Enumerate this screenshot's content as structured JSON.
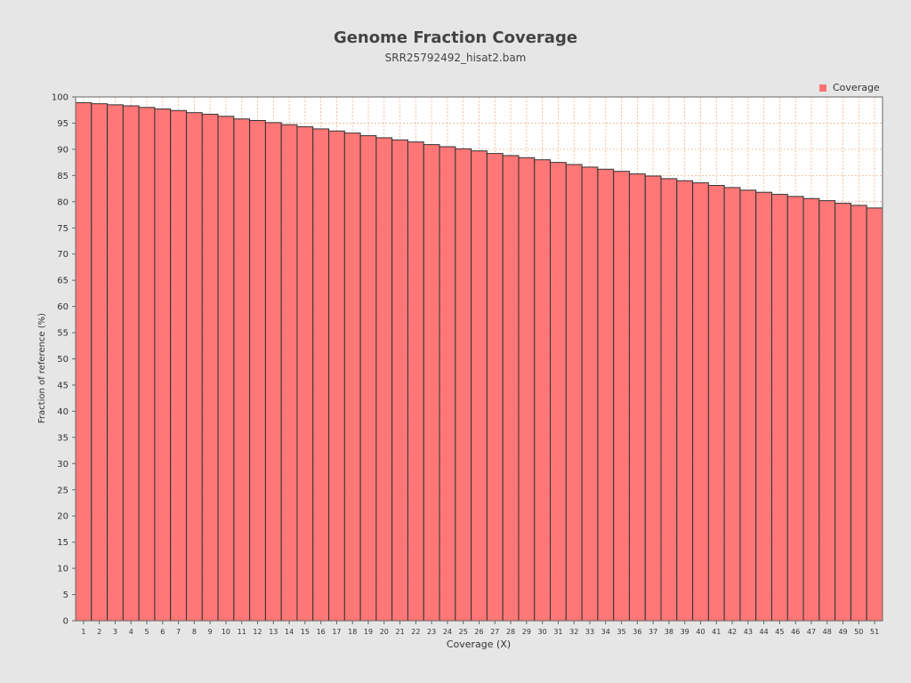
{
  "chart_data": {
    "type": "bar",
    "title": "Genome Fraction Coverage",
    "subtitle": "SRR25792492_hisat2.bam",
    "xlabel": "Coverage (X)",
    "ylabel": "Fraction of reference (%)",
    "ylim": [
      0,
      100
    ],
    "ytick_step": 5,
    "grid": true,
    "legend_position": "top-right",
    "series": [
      {
        "name": "Coverage",
        "color": "#ff7070",
        "values": [
          98.9,
          98.7,
          98.5,
          98.3,
          98.0,
          97.7,
          97.4,
          97.0,
          96.7,
          96.3,
          95.8,
          95.5,
          95.1,
          94.7,
          94.3,
          93.9,
          93.5,
          93.1,
          92.6,
          92.2,
          91.8,
          91.4,
          90.9,
          90.5,
          90.1,
          89.7,
          89.2,
          88.8,
          88.4,
          88.0,
          87.5,
          87.1,
          86.6,
          86.2,
          85.8,
          85.3,
          84.9,
          84.4,
          84.0,
          83.6,
          83.1,
          82.7,
          82.2,
          81.8,
          81.4,
          81.0,
          80.6,
          80.2,
          79.7,
          79.3,
          78.8
        ]
      }
    ],
    "categories": [
      "1",
      "2",
      "3",
      "4",
      "5",
      "6",
      "7",
      "8",
      "9",
      "10",
      "11",
      "12",
      "13",
      "14",
      "15",
      "16",
      "17",
      "18",
      "19",
      "20",
      "21",
      "22",
      "23",
      "24",
      "25",
      "26",
      "27",
      "28",
      "29",
      "30",
      "31",
      "32",
      "33",
      "34",
      "35",
      "36",
      "37",
      "38",
      "39",
      "40",
      "41",
      "42",
      "43",
      "44",
      "45",
      "46",
      "47",
      "48",
      "49",
      "50",
      "51"
    ]
  },
  "colors": {
    "background": "#e6e6e6",
    "plot_background": "#ffffff",
    "grid": "#f0b090",
    "bar_fill": "#ff7070",
    "bar_stroke": "#333333"
  }
}
